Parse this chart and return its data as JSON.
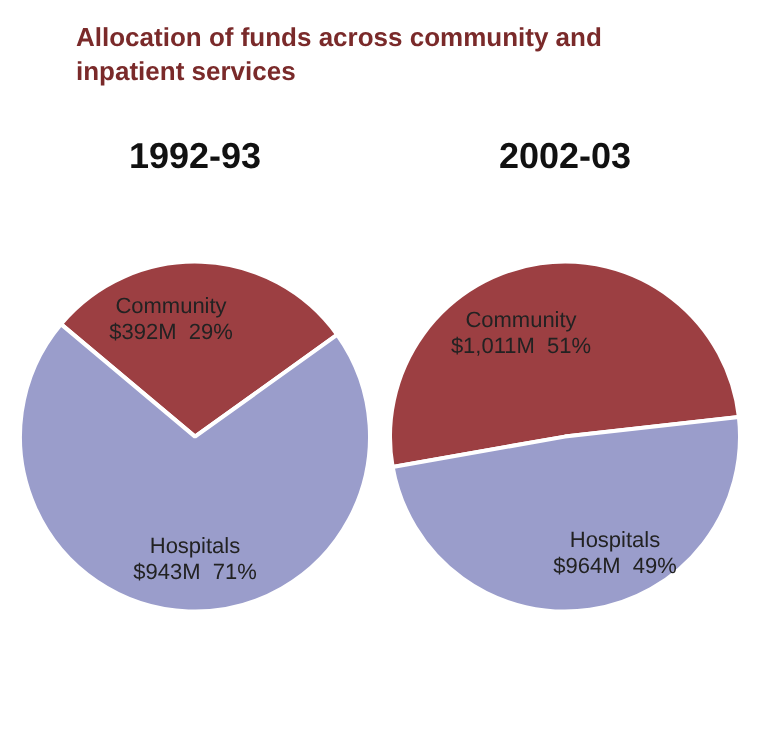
{
  "chart_data": [
    {
      "type": "pie",
      "title": "1992-93",
      "annotations": [
        "Allocation of funds across community and inpatient services"
      ],
      "categories": [
        "Community",
        "Hospitals"
      ],
      "values": [
        29,
        71
      ],
      "value_labels": [
        "$392M  29%",
        "$943M  71%"
      ],
      "colors": [
        "#9c3f42",
        "#9a9dcb"
      ],
      "legend": false
    },
    {
      "type": "pie",
      "title": "2002-03",
      "categories": [
        "Community",
        "Hospitals"
      ],
      "values": [
        51,
        49
      ],
      "value_labels": [
        "$1,011M  51%",
        "$964M  49%"
      ],
      "colors": [
        "#9c3f42",
        "#9a9dcb"
      ],
      "legend": false
    }
  ]
}
